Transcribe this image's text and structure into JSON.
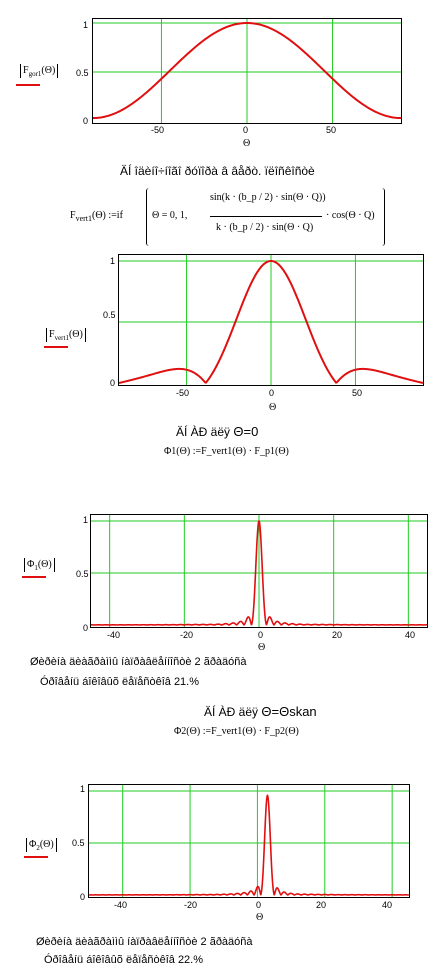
{
  "plots": [
    {
      "id": "p1",
      "ylabel_prefix": "F",
      "ylabel_sub": "gor1",
      "ylabel_arg": "(Θ)",
      "yticks": [
        "1",
        "0.5",
        "0"
      ],
      "xticks": [
        "-50",
        "0",
        "50"
      ],
      "xlabel": "Θ",
      "chart_data": {
        "type": "line",
        "series": [
          {
            "name": "F_gor1"
          }
        ],
        "xlim": [
          -90,
          90
        ],
        "ylim": [
          0,
          1
        ],
        "grid": true
      }
    },
    {
      "id": "p2",
      "ylabel_prefix": "F",
      "ylabel_sub": "vert1",
      "ylabel_arg": "(Θ)",
      "yticks": [
        "1",
        "0.5",
        "0"
      ],
      "xticks": [
        "-50",
        "0",
        "50"
      ],
      "xlabel": "Θ",
      "chart_data": {
        "type": "line",
        "series": [
          {
            "name": "F_vert1"
          }
        ],
        "xlim": [
          -90,
          90
        ],
        "ylim": [
          0,
          1
        ],
        "grid": true
      }
    },
    {
      "id": "p3",
      "ylabel_prefix": "Φ",
      "ylabel_sub": "1",
      "ylabel_arg": "(Θ)",
      "yticks": [
        "1",
        "0.5",
        "0"
      ],
      "xticks": [
        "-40",
        "-20",
        "0",
        "20",
        "40"
      ],
      "xlabel": "Θ",
      "chart_data": {
        "type": "line",
        "series": [
          {
            "name": "Φ1"
          }
        ],
        "xlim": [
          -45,
          45
        ],
        "ylim": [
          0,
          1
        ],
        "grid": true
      }
    },
    {
      "id": "p4",
      "ylabel_prefix": "Φ",
      "ylabel_sub": "2",
      "ylabel_arg": "(Θ)",
      "yticks": [
        "1",
        "0.5",
        "0"
      ],
      "xticks": [
        "-40",
        "-20",
        "0",
        "20",
        "40"
      ],
      "xlabel": "Θ",
      "chart_data": {
        "type": "line",
        "series": [
          {
            "name": "Φ2"
          }
        ],
        "xlim": [
          -50,
          45
        ],
        "ylim": [
          0,
          1
        ],
        "grid": true
      }
    }
  ],
  "texts": {
    "caption1": "ÄÍ îäèíî÷íîãî ðóïîðà â âåðò. ïëîñêîñòè",
    "formula1_lhs": "F",
    "formula1_sub": "vert1",
    "formula1_rest": "(Θ) :=if",
    "formula1_cond": "Θ = 0, 1,",
    "formula1_num": "sin(k · (b_p / 2) · sin(Θ · Q))",
    "formula1_den": "k · (b_p / 2) · sin(Θ · Q)",
    "formula1_tail": "· cos(Θ · Q)",
    "caption2_a": "ÄÍ ÀÐ äëÿ",
    "caption2_b": "Θ=0",
    "formula2": "Φ1(Θ) :=F_vert1(Θ) · F_p1(Θ)",
    "caption3": "Øèðèíà äèàãðàììû íàïðàâëåííîñòè 2 ãðàäóñà",
    "caption4": "Óðîâåíü áîêîâûõ ëåïåñòêîâ 21.%",
    "caption5_a": "ÄÍ ÀÐ äëÿ",
    "caption5_b": "Θ=Θskan",
    "formula3": "Φ2(Θ) :=F_vert1(Θ) · F_p2(Θ)",
    "caption6": "Øèðèíà äèàãðàììû íàïðàâëåííîñòè 2 ãðàäóñà",
    "caption7": "Óðîâåíü áîêîâûõ ëåïåñòêîâ 22.%"
  },
  "colors": {
    "curve": "#e01010",
    "grid": "#22cc22",
    "marker": "#e01010"
  }
}
